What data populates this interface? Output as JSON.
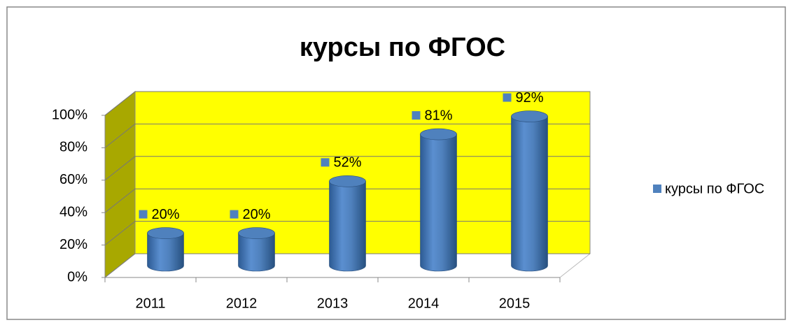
{
  "chart_data": {
    "type": "bar3d",
    "title": "курсы по ФГОС",
    "categories": [
      "2011",
      "2012",
      "2013",
      "2014",
      "2015"
    ],
    "series": [
      {
        "name": "курсы по ФГОС",
        "color": "#4f81bd",
        "values": [
          20,
          20,
          52,
          81,
          92
        ],
        "value_labels": [
          "20%",
          "20%",
          "52%",
          "81%",
          "92%"
        ]
      }
    ],
    "ylim": [
      0,
      100
    ],
    "yticks": [
      {
        "value": 0,
        "label": "0%"
      },
      {
        "value": 20,
        "label": "20%"
      },
      {
        "value": 40,
        "label": "40%"
      },
      {
        "value": 60,
        "label": "60%"
      },
      {
        "value": 80,
        "label": "80%"
      },
      {
        "value": 100,
        "label": "100%"
      }
    ],
    "grid": true,
    "legend": "right",
    "wall_color": "#ffff00",
    "side_wall_color": "#a8a800"
  }
}
